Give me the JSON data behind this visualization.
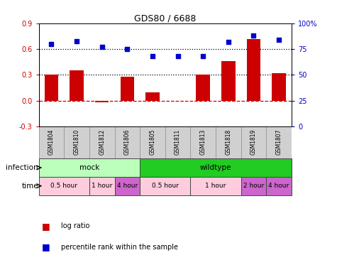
{
  "title": "GDS80 / 6688",
  "samples": [
    "GSM1804",
    "GSM1810",
    "GSM1812",
    "GSM1806",
    "GSM1805",
    "GSM1811",
    "GSM1813",
    "GSM1818",
    "GSM1819",
    "GSM1807"
  ],
  "log_ratio": [
    0.3,
    0.35,
    -0.02,
    0.28,
    0.1,
    0.0,
    0.3,
    0.46,
    0.72,
    0.32
  ],
  "percentile": [
    80,
    83,
    77,
    75,
    68,
    68,
    68,
    82,
    88,
    84
  ],
  "ylim_left": [
    -0.3,
    0.9
  ],
  "ylim_right": [
    0,
    100
  ],
  "yticks_left": [
    -0.3,
    0.0,
    0.3,
    0.6,
    0.9
  ],
  "yticks_right": [
    0,
    25,
    50,
    75,
    100
  ],
  "yticklabels_right": [
    "0",
    "25",
    "50",
    "75",
    "100%"
  ],
  "bar_color": "#cc0000",
  "dot_color": "#0000cc",
  "zero_line_color": "#cc0000",
  "dotted_line_color": "#000000",
  "infection_groups": [
    {
      "label": "mock",
      "start": 0,
      "end": 4,
      "color": "#bbffbb"
    },
    {
      "label": "wildtype",
      "start": 4,
      "end": 10,
      "color": "#22cc22"
    }
  ],
  "time_groups": [
    {
      "label": "0.5 hour",
      "start": 0,
      "end": 2,
      "color": "#ffccdd"
    },
    {
      "label": "1 hour",
      "start": 2,
      "end": 3,
      "color": "#ffccdd"
    },
    {
      "label": "4 hour",
      "start": 3,
      "end": 4,
      "color": "#cc66cc"
    },
    {
      "label": "0.5 hour",
      "start": 4,
      "end": 6,
      "color": "#ffccdd"
    },
    {
      "label": "1 hour",
      "start": 6,
      "end": 8,
      "color": "#ffccdd"
    },
    {
      "label": "2 hour",
      "start": 8,
      "end": 9,
      "color": "#cc66cc"
    },
    {
      "label": "4 hour",
      "start": 9,
      "end": 10,
      "color": "#cc66cc"
    }
  ],
  "bar_width": 0.55,
  "plot_bg": "#ffffff"
}
